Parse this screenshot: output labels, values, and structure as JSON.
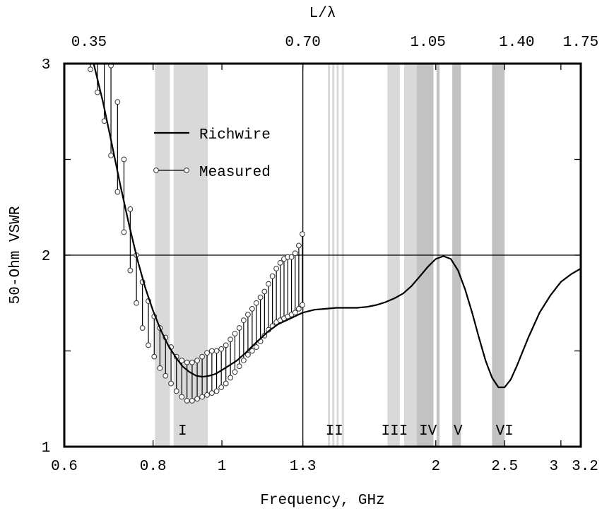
{
  "chart_data": {
    "type": "line",
    "title": "",
    "xlabel": "Frequency, GHz",
    "ylabel": "50-Ohm VSWR",
    "x2label": "L/λ",
    "x_scale": "log",
    "xlim": [
      0.6,
      3.2
    ],
    "ylim": [
      1,
      3
    ],
    "grid": false,
    "legend_position": "upper-left",
    "x_ticks": [
      {
        "value": 0.6,
        "label": "0.6"
      },
      {
        "value": 0.8,
        "label": "0.8"
      },
      {
        "value": 1.0,
        "label": "1"
      },
      {
        "value": 1.3,
        "label": "1.3"
      },
      {
        "value": 2.0,
        "label": "2"
      },
      {
        "value": 2.5,
        "label": "2.5"
      },
      {
        "value": 3.0,
        "label": "3"
      },
      {
        "value": 3.2,
        "label": "3.2"
      }
    ],
    "x2_ticks": [
      {
        "value": 0.65,
        "label": "0.35"
      },
      {
        "value": 1.3,
        "label": "0.70"
      },
      {
        "value": 1.95,
        "label": "1.05"
      },
      {
        "value": 2.6,
        "label": "1.40"
      },
      {
        "value": 3.25,
        "label": "1.75"
      }
    ],
    "y_ticks": [
      {
        "value": 1,
        "label": "1"
      },
      {
        "value": 1.5,
        "label": ""
      },
      {
        "value": 2,
        "label": "2"
      },
      {
        "value": 2.5,
        "label": ""
      },
      {
        "value": 3,
        "label": "3"
      }
    ],
    "reference_lines": [
      {
        "axis": "y",
        "value": 2.0
      },
      {
        "axis": "x",
        "value": 1.3
      }
    ],
    "bands": [
      {
        "label": "I",
        "label_x": 0.88,
        "ranges": [
          [
            0.805,
            0.845
          ],
          [
            0.855,
            0.955
          ]
        ]
      },
      {
        "label": "II",
        "label_x": 1.44,
        "ranges": [
          [
            1.41,
            1.42
          ],
          [
            1.43,
            1.44
          ],
          [
            1.45,
            1.46
          ],
          [
            1.475,
            1.485
          ]
        ]
      },
      {
        "label": "III",
        "label_x": 1.75,
        "ranges": [
          [
            1.71,
            1.78
          ],
          [
            1.805,
            1.88
          ]
        ]
      },
      {
        "label": "IV",
        "label_x": 1.95,
        "ranges": [
          [
            1.88,
            1.985
          ],
          [
            2.005,
            2.025
          ]
        ]
      },
      {
        "label": "V",
        "label_x": 2.15,
        "ranges": [
          [
            2.11,
            2.17
          ]
        ]
      },
      {
        "label": "VI",
        "label_x": 2.5,
        "ranges": [
          [
            2.4,
            2.5
          ]
        ]
      }
    ],
    "series": [
      {
        "name": "Richwire",
        "style": "line",
        "x": [
          0.66,
          0.68,
          0.7,
          0.72,
          0.74,
          0.76,
          0.78,
          0.8,
          0.82,
          0.84,
          0.86,
          0.88,
          0.9,
          0.92,
          0.94,
          0.96,
          0.98,
          1.0,
          1.02,
          1.05,
          1.08,
          1.1,
          1.13,
          1.16,
          1.2,
          1.25,
          1.3,
          1.35,
          1.4,
          1.45,
          1.5,
          1.55,
          1.6,
          1.65,
          1.7,
          1.75,
          1.8,
          1.85,
          1.9,
          1.95,
          2.0,
          2.05,
          2.1,
          2.15,
          2.2,
          2.25,
          2.3,
          2.35,
          2.4,
          2.45,
          2.5,
          2.55,
          2.6,
          2.7,
          2.8,
          2.9,
          3.0,
          3.1,
          3.2
        ],
        "y": [
          3.0,
          2.8,
          2.58,
          2.36,
          2.16,
          1.98,
          1.83,
          1.71,
          1.61,
          1.53,
          1.47,
          1.42,
          1.39,
          1.37,
          1.365,
          1.37,
          1.38,
          1.4,
          1.42,
          1.45,
          1.49,
          1.52,
          1.56,
          1.6,
          1.64,
          1.67,
          1.7,
          1.715,
          1.72,
          1.725,
          1.725,
          1.725,
          1.73,
          1.74,
          1.755,
          1.775,
          1.8,
          1.84,
          1.89,
          1.94,
          1.98,
          1.995,
          1.98,
          1.92,
          1.82,
          1.7,
          1.57,
          1.45,
          1.36,
          1.31,
          1.31,
          1.35,
          1.42,
          1.57,
          1.7,
          1.79,
          1.86,
          1.9,
          1.93
        ]
      },
      {
        "name": "Measured",
        "style": "range",
        "x": [
          0.653,
          0.668,
          0.683,
          0.698,
          0.713,
          0.728,
          0.743,
          0.758,
          0.773,
          0.788,
          0.803,
          0.818,
          0.833,
          0.848,
          0.863,
          0.878,
          0.893,
          0.908,
          0.923,
          0.938,
          0.953,
          0.968,
          0.983,
          0.998,
          1.013,
          1.028,
          1.043,
          1.058,
          1.073,
          1.088,
          1.103,
          1.118,
          1.133,
          1.148,
          1.163,
          1.178,
          1.193,
          1.208,
          1.223,
          1.238,
          1.253,
          1.268,
          1.283,
          1.298
        ],
        "y_high": [
          3.0,
          3.0,
          3.0,
          2.99,
          2.8,
          2.5,
          2.24,
          2.0,
          1.86,
          1.76,
          1.68,
          1.62,
          1.57,
          1.52,
          1.47,
          1.45,
          1.44,
          1.44,
          1.45,
          1.47,
          1.49,
          1.5,
          1.5,
          1.51,
          1.53,
          1.56,
          1.59,
          1.62,
          1.66,
          1.69,
          1.72,
          1.75,
          1.78,
          1.81,
          1.85,
          1.89,
          1.93,
          1.96,
          1.98,
          1.99,
          1.99,
          2.01,
          2.05,
          2.11
        ],
        "y_low": [
          2.97,
          2.85,
          2.7,
          2.52,
          2.33,
          2.12,
          1.92,
          1.75,
          1.62,
          1.53,
          1.47,
          1.41,
          1.37,
          1.33,
          1.29,
          1.26,
          1.24,
          1.24,
          1.25,
          1.26,
          1.27,
          1.28,
          1.29,
          1.31,
          1.33,
          1.36,
          1.39,
          1.42,
          1.45,
          1.48,
          1.5,
          1.52,
          1.55,
          1.58,
          1.61,
          1.63,
          1.65,
          1.66,
          1.67,
          1.68,
          1.69,
          1.7,
          1.72,
          1.74
        ]
      }
    ]
  }
}
